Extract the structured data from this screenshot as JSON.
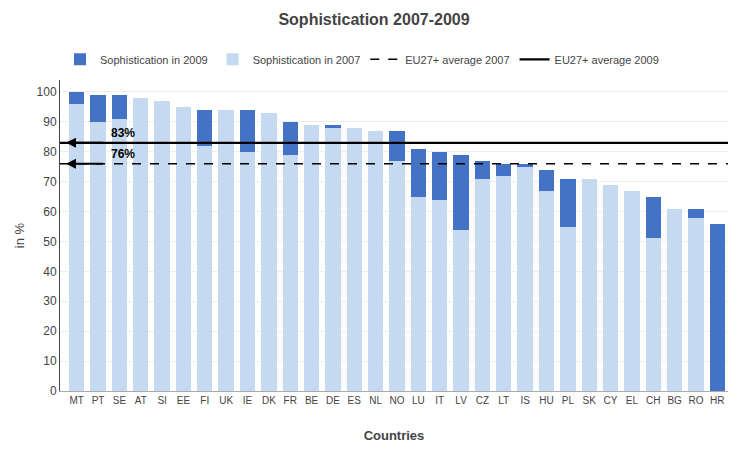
{
  "chart_data": {
    "type": "bar",
    "title": "Sophistication 2007-2009",
    "xlabel": "Countries",
    "ylabel": "in %",
    "categories": [
      "MT",
      "PT",
      "SE",
      "AT",
      "SI",
      "EE",
      "FI",
      "UK",
      "IE",
      "DK",
      "FR",
      "BE",
      "DE",
      "ES",
      "NL",
      "NO",
      "LU",
      "IT",
      "LV",
      "CZ",
      "LT",
      "IS",
      "HU",
      "PL",
      "SK",
      "CY",
      "EL",
      "CH",
      "BG",
      "RO",
      "HR"
    ],
    "stacked": true,
    "series": [
      {
        "name": "Sophistication in 2007",
        "color": "#C5D9F1",
        "values": [
          96,
          90,
          91,
          98,
          97,
          95,
          82,
          94,
          80,
          93,
          79,
          89,
          88,
          88,
          87,
          77,
          65,
          64,
          54,
          71,
          72,
          75,
          67,
          55,
          71,
          69,
          67,
          51,
          61,
          58,
          0
        ]
      },
      {
        "name": "Sophistication in 2009",
        "color": "#4472C4",
        "values": [
          4,
          9,
          8,
          0,
          0,
          0,
          12,
          0,
          14,
          0,
          11,
          0,
          1,
          0,
          0,
          10,
          16,
          16,
          25,
          6,
          4,
          1,
          7,
          16,
          0,
          0,
          0,
          14,
          0,
          3,
          56
        ]
      }
    ],
    "reference_lines": [
      {
        "name": "EU27+ average 2007",
        "value": 76,
        "label": "76%",
        "line_style": "dashed",
        "color": "#000000"
      },
      {
        "name": "EU27+ average 2009",
        "value": 83,
        "label": "83%",
        "line_style": "solid",
        "color": "#000000"
      }
    ],
    "ylim": [
      0,
      104
    ],
    "yticks": [
      0,
      10,
      20,
      30,
      40,
      50,
      60,
      70,
      80,
      90,
      100
    ],
    "grid": true,
    "legend": "top"
  }
}
